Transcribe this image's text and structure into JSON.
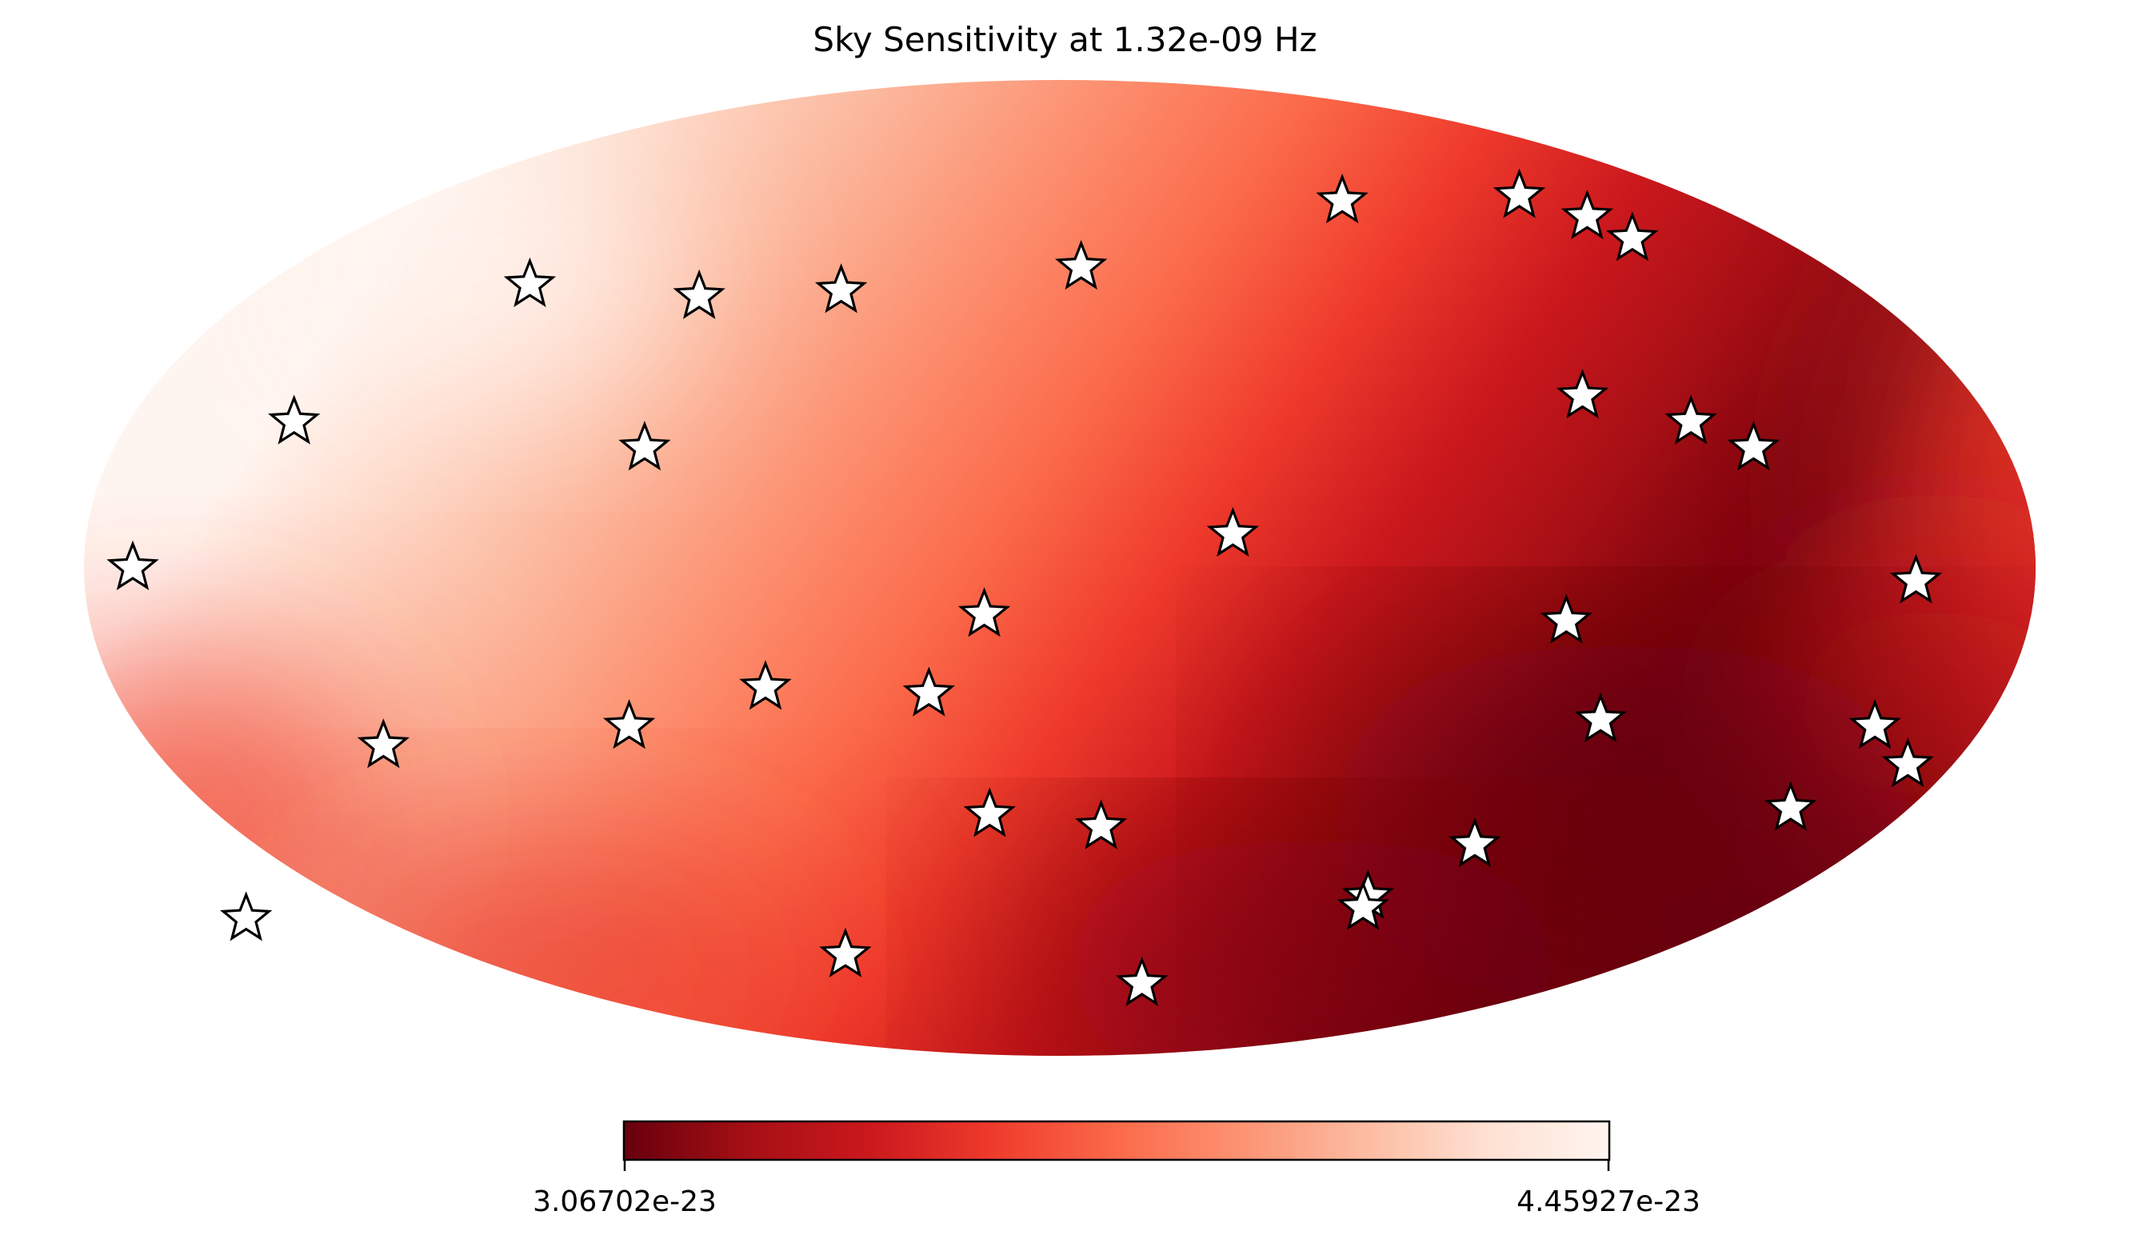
{
  "chart_data": {
    "type": "heatmap",
    "title": "Sky Sensitivity at 1.32e-09 Hz",
    "projection": "mollweide",
    "colormap": "Reds_r",
    "colorbar": {
      "min_label": "3.06702e-23",
      "max_label": "4.45927e-23",
      "min": 3.06702e-23,
      "max": 4.45927e-23,
      "stops": [
        "#67000d",
        "#a50f15",
        "#cb181d",
        "#ef3b2c",
        "#fb6a4a",
        "#fc9272",
        "#fcbba1",
        "#fee0d2",
        "#fff5f0"
      ]
    },
    "markers": {
      "symbol": "star",
      "fill": "#ffffff",
      "edge": "#000000",
      "points": [
        {
          "lon": 131,
          "lat": 60
        },
        {
          "lon": 79,
          "lat": 59
        },
        {
          "lon": -49,
          "lat": 43
        },
        {
          "lon": -80,
          "lat": 42
        },
        {
          "lon": -120,
          "lat": 44
        },
        {
          "lon": 5,
          "lat": 47
        },
        {
          "lon": -148,
          "lat": 22
        },
        {
          "lon": -79,
          "lat": 18
        },
        {
          "lon": 103,
          "lat": 26
        },
        {
          "lon": 143,
          "lat": 52
        },
        {
          "lon": 140,
          "lat": 56
        },
        {
          "lon": 122,
          "lat": 22
        },
        {
          "lon": 132,
          "lat": 18
        },
        {
          "lon": 32,
          "lat": 5
        },
        {
          "lon": 158,
          "lat": -2
        },
        {
          "lon": -171,
          "lat": 0
        },
        {
          "lon": -14,
          "lat": -7
        },
        {
          "lon": 94,
          "lat": -8
        },
        {
          "lon": -56,
          "lat": -18
        },
        {
          "lon": -25,
          "lat": -19
        },
        {
          "lon": -84,
          "lat": -24
        },
        {
          "lon": -134,
          "lat": -27
        },
        {
          "lon": 105,
          "lat": -23
        },
        {
          "lon": 159,
          "lat": -24
        },
        {
          "lon": 171,
          "lat": -30
        },
        {
          "lon": -15,
          "lat": -38
        },
        {
          "lon": 9,
          "lat": -40
        },
        {
          "lon": 155,
          "lat": -37
        },
        {
          "lon": 93,
          "lat": -43
        },
        {
          "lon": 77,
          "lat": -52
        },
        {
          "lon": 78,
          "lat": -54
        },
        {
          "lon": -216,
          "lat": -56
        },
        {
          "lon": -65,
          "lat": -63
        },
        {
          "lon": 29,
          "lat": -69
        }
      ]
    }
  }
}
